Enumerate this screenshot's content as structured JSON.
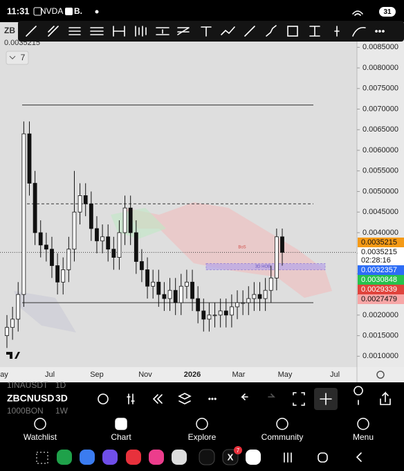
{
  "status_bar": {
    "time": "11:31",
    "notifications": [
      "NVDA",
      "B."
    ],
    "battery": "31"
  },
  "chart_header": {
    "symbol_fragment": "ZB",
    "last_price": "0.0035215",
    "indicator_count": "7"
  },
  "chart_data": {
    "type": "candlestick",
    "open": [
      0.0015,
      0.0017,
      0.0019,
      0.0025,
      0.0064,
      0.0052,
      0.004,
      0.0037,
      0.0036,
      0.0032,
      0.0028,
      0.0031,
      0.0036,
      0.0045,
      0.0049,
      0.0047,
      0.0041,
      0.0038,
      0.0039,
      0.0036,
      0.0034,
      0.004,
      0.0046,
      0.004,
      0.0033,
      0.0031,
      0.0027,
      0.0028,
      0.0025,
      0.0024,
      0.0026,
      0.0023,
      0.0027,
      0.0028,
      0.0024,
      0.0021,
      0.0019,
      0.002,
      0.002,
      0.0021,
      0.002,
      0.0022,
      0.0023,
      0.0023,
      0.0024,
      0.0025,
      0.0024,
      0.0026,
      0.0029,
      0.0039
    ],
    "high": [
      0.002,
      0.0022,
      0.0028,
      0.0067,
      0.0067,
      0.0055,
      0.0043,
      0.004,
      0.0039,
      0.0035,
      0.0034,
      0.0039,
      0.0055,
      0.0052,
      0.0052,
      0.005,
      0.0044,
      0.0042,
      0.0042,
      0.0039,
      0.0043,
      0.0049,
      0.0049,
      0.0043,
      0.0036,
      0.0034,
      0.0031,
      0.0031,
      0.0028,
      0.0029,
      0.0029,
      0.003,
      0.0031,
      0.0031,
      0.0027,
      0.0024,
      0.0023,
      0.0023,
      0.0024,
      0.0024,
      0.0025,
      0.0026,
      0.0026,
      0.0027,
      0.0028,
      0.0028,
      0.0029,
      0.0032,
      0.0041,
      0.0041
    ],
    "low": [
      0.0012,
      0.0014,
      0.0016,
      0.0022,
      0.0049,
      0.0037,
      0.0034,
      0.0033,
      0.0029,
      0.0025,
      0.0025,
      0.0028,
      0.0033,
      0.0042,
      0.0044,
      0.0038,
      0.0035,
      0.0035,
      0.0033,
      0.0031,
      0.0031,
      0.0037,
      0.0037,
      0.003,
      0.0028,
      0.0024,
      0.0024,
      0.0022,
      0.0021,
      0.0021,
      0.002,
      0.002,
      0.0024,
      0.0021,
      0.0018,
      0.0016,
      0.0016,
      0.0017,
      0.0017,
      0.0017,
      0.0017,
      0.0019,
      0.002,
      0.002,
      0.0021,
      0.0021,
      0.0021,
      0.0023,
      0.0026,
      0.0032
    ],
    "close": [
      0.0017,
      0.0019,
      0.0025,
      0.0064,
      0.0052,
      0.004,
      0.0037,
      0.0036,
      0.0032,
      0.0028,
      0.0031,
      0.0036,
      0.0045,
      0.0049,
      0.0047,
      0.0041,
      0.0038,
      0.0039,
      0.0036,
      0.0034,
      0.004,
      0.0046,
      0.004,
      0.0033,
      0.0031,
      0.0027,
      0.0028,
      0.0025,
      0.0024,
      0.0026,
      0.0023,
      0.0027,
      0.0028,
      0.0024,
      0.0021,
      0.0019,
      0.002,
      0.002,
      0.0021,
      0.002,
      0.0022,
      0.0023,
      0.0023,
      0.0024,
      0.0025,
      0.0024,
      0.0026,
      0.0029,
      0.0039,
      0.0035215
    ],
    "ylim": [
      0.00077,
      0.00864
    ],
    "yticks": [
      {
        "value": 0.0085,
        "label": "0.0085000"
      },
      {
        "value": 0.008,
        "label": "0.0080000"
      },
      {
        "value": 0.0075,
        "label": "0.0075000"
      },
      {
        "value": 0.007,
        "label": "0.0070000"
      },
      {
        "value": 0.0065,
        "label": "0.0065000"
      },
      {
        "value": 0.006,
        "label": "0.0060000"
      },
      {
        "value": 0.0055,
        "label": "0.0055000"
      },
      {
        "value": 0.005,
        "label": "0.0050000"
      },
      {
        "value": 0.0045,
        "label": "0.0045000"
      },
      {
        "value": 0.004,
        "label": "0.0040000"
      },
      {
        "value": 0.0035,
        "label": "0.0035000"
      },
      {
        "value": 0.003,
        "label": "0.0030000"
      },
      {
        "value": 0.0025,
        "label": "0.0025000"
      },
      {
        "value": 0.002,
        "label": "0.0020000"
      },
      {
        "value": 0.0015,
        "label": "0.0015000"
      },
      {
        "value": 0.001,
        "label": "0.0010000"
      }
    ],
    "x_labels": [
      "ay",
      "Jul",
      "Sep",
      "Nov",
      "2026",
      "Mar",
      "May",
      "Jul"
    ],
    "levels": [
      0.0071,
      0.0047,
      0.0023
    ],
    "current_price": 0.0035215,
    "countdown": "02:28:16",
    "price_badges": [
      {
        "value": 0.0035215,
        "color": "#f59a16"
      },
      {
        "value": 0.0035215,
        "color": "#ffffff"
      },
      {
        "value": 0.0032357,
        "color": "#2d6df6"
      },
      {
        "value": 0.0030848,
        "color": "#27c24c"
      },
      {
        "value": 0.0029339,
        "color": "#e0433c"
      },
      {
        "value": 0.0027479,
        "color": "#f7a6a6"
      }
    ],
    "zones": [
      {
        "label": "BoS"
      },
      {
        "label": "3D HOB",
        "low": 0.0031,
        "high": 0.00325
      }
    ]
  },
  "chart_toolbar": {
    "symbol": "ZBCNUSD",
    "interval": "3D",
    "prev_symbol": "1INAUSDT",
    "prev_interval": "1D",
    "next_symbol": "1000BON",
    "next_interval": "1W"
  },
  "nav": [
    "Watchlist",
    "Chart",
    "Explore",
    "Community",
    "Menu"
  ],
  "dock_badge": "7"
}
